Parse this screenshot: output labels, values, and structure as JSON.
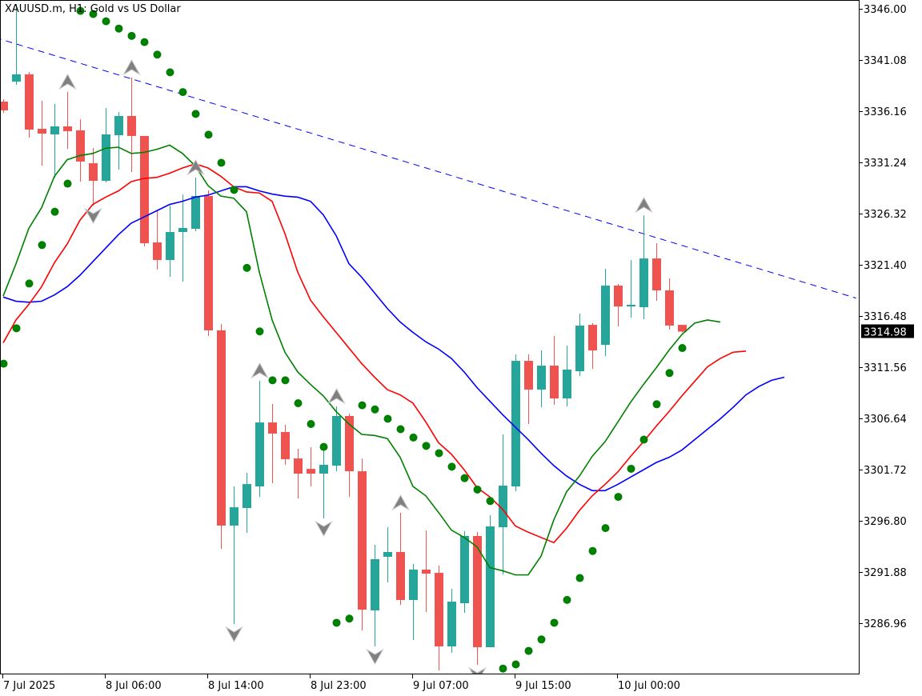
{
  "header": {
    "title": "XAUUSD.m, H1:  Gold vs US Dollar"
  },
  "colors": {
    "bull": "#26a69a",
    "bear": "#ef5350",
    "lips": "#008000",
    "teeth": "#ff0000",
    "jaw": "#0000ff",
    "sar": "#008000",
    "fractal": "#808080",
    "trendline": "#0000ff",
    "price_label_bg": "#000000"
  },
  "chart_data": {
    "type": "candlestick",
    "title": "XAUUSD.m, H1:  Gold vs US Dollar",
    "ylim": [
      3282.2,
      3346.8
    ],
    "y_ticks": [
      "3346.00",
      "3341.08",
      "3336.16",
      "3331.24",
      "3326.32",
      "3321.40",
      "3316.48",
      "3311.56",
      "3306.64",
      "3301.72",
      "3296.80",
      "3291.88",
      "3286.96"
    ],
    "x_ticks": [
      {
        "bar": 0,
        "label": "7 Jul 2025"
      },
      {
        "bar": 8,
        "label": "8 Jul 06:00"
      },
      {
        "bar": 16,
        "label": "8 Jul 14:00"
      },
      {
        "bar": 24,
        "label": "8 Jul 23:00"
      },
      {
        "bar": 32,
        "label": "9 Jul 07:00"
      },
      {
        "bar": 40,
        "label": "9 Jul 15:00"
      },
      {
        "bar": 48,
        "label": "10 Jul 00:00"
      }
    ],
    "current_price": "3314.98",
    "candles_ohlc": [
      [
        3337.08,
        3337.3,
        3336.0,
        3336.24
      ],
      [
        3339.0,
        3346.46,
        3338.7,
        3339.7
      ],
      [
        3339.7,
        3339.93,
        3333.62,
        3334.39
      ],
      [
        3334.47,
        3337.16,
        3330.93,
        3334.01
      ],
      [
        3333.93,
        3336.85,
        3329.78,
        3334.7
      ],
      [
        3334.7,
        3338.01,
        3332.55,
        3334.24
      ],
      [
        3334.32,
        3335.39,
        3329.39,
        3331.32
      ],
      [
        3331.16,
        3332.62,
        3327.09,
        3329.47
      ],
      [
        3329.47,
        3336.47,
        3329.32,
        3333.93
      ],
      [
        3333.85,
        3336.08,
        3330.55,
        3335.7
      ],
      [
        3335.7,
        3339.39,
        3330.32,
        3333.78
      ],
      [
        3333.78,
        3333.78,
        3323.17,
        3323.47
      ],
      [
        3323.55,
        3326.7,
        3320.94,
        3321.86
      ],
      [
        3321.86,
        3327.09,
        3320.25,
        3324.55
      ],
      [
        3324.55,
        3328.16,
        3319.78,
        3324.94
      ],
      [
        3324.86,
        3329.78,
        3324.63,
        3328.01
      ],
      [
        3328.01,
        3328.55,
        3314.56,
        3315.1
      ],
      [
        3315.1,
        3315.71,
        3294.11,
        3296.34
      ],
      [
        3296.34,
        3300.1,
        3286.88,
        3298.1
      ],
      [
        3298.03,
        3301.41,
        3295.64,
        3300.33
      ],
      [
        3300.1,
        3310.25,
        3299.1,
        3306.25
      ],
      [
        3306.25,
        3308.02,
        3300.41,
        3305.18
      ],
      [
        3305.33,
        3306.02,
        3302.18,
        3302.72
      ],
      [
        3302.79,
        3303.72,
        3298.95,
        3301.33
      ],
      [
        3301.79,
        3303.87,
        3300.1,
        3301.33
      ],
      [
        3301.33,
        3303.79,
        3297.03,
        3302.18
      ],
      [
        3302.1,
        3307.79,
        3301.56,
        3306.87
      ],
      [
        3306.87,
        3307.1,
        3299.1,
        3301.56
      ],
      [
        3301.56,
        3302.79,
        3286.27,
        3288.26
      ],
      [
        3288.19,
        3294.49,
        3284.73,
        3293.11
      ],
      [
        3293.34,
        3296.18,
        3290.88,
        3293.8
      ],
      [
        3293.8,
        3297.57,
        3288.73,
        3289.19
      ],
      [
        3289.19,
        3292.65,
        3285.34,
        3292.11
      ],
      [
        3292.11,
        3295.88,
        3288.03,
        3291.72
      ],
      [
        3291.8,
        3292.49,
        3282.42,
        3284.73
      ],
      [
        3284.73,
        3290.26,
        3284.11,
        3289.03
      ],
      [
        3288.88,
        3295.8,
        3287.96,
        3295.34
      ],
      [
        3295.34,
        3295.72,
        3282.96,
        3284.65
      ],
      [
        3284.65,
        3297.34,
        3284.65,
        3296.26
      ],
      [
        3296.18,
        3305.1,
        3291.65,
        3300.18
      ],
      [
        3300.1,
        3312.79,
        3299.64,
        3312.17
      ],
      [
        3312.17,
        3312.79,
        3306.1,
        3309.41
      ],
      [
        3309.41,
        3313.17,
        3307.71,
        3311.71
      ],
      [
        3311.71,
        3314.56,
        3307.95,
        3308.56
      ],
      [
        3308.56,
        3313.63,
        3307.79,
        3311.33
      ],
      [
        3311.17,
        3316.71,
        3310.71,
        3315.56
      ],
      [
        3315.63,
        3315.79,
        3311.4,
        3313.17
      ],
      [
        3313.71,
        3321.01,
        3312.63,
        3319.4
      ],
      [
        3319.4,
        3319.55,
        3315.48,
        3317.4
      ],
      [
        3317.4,
        3321.86,
        3316.33,
        3317.56
      ],
      [
        3317.32,
        3326.17,
        3316.17,
        3322.01
      ],
      [
        3322.01,
        3323.47,
        3317.94,
        3318.94
      ],
      [
        3318.94,
        3320.09,
        3315.17,
        3315.56
      ],
      [
        3315.63,
        3315.63,
        3314.9,
        3314.98
      ]
    ],
    "alligator": {
      "lips": [
        3318.4,
        3321.5,
        3324.9,
        3326.9,
        3329.9,
        3331.5,
        3331.9,
        3332.1,
        3332.6,
        3332.7,
        3332.1,
        3332.2,
        3332.5,
        3332.9,
        3332.1,
        3330.9,
        3329.0,
        3328.0,
        3327.8,
        3326.5,
        3320.7,
        3316.1,
        3313.0,
        3311.1,
        3309.9,
        3308.8,
        3307.3,
        3306.1,
        3305.1,
        3305.0,
        3304.7,
        3302.9,
        3300.1,
        3299.2,
        3297.6,
        3295.9,
        3295.2,
        3294.3,
        3292.3,
        3292.0,
        3291.6,
        3291.6,
        3293.4,
        3296.9,
        3299.6,
        3301.1,
        3303.0,
        3304.4,
        3306.3,
        3308.2,
        3309.9,
        3311.5,
        3313.2,
        3314.7,
        3315.8,
        3316.1,
        3315.9
      ],
      "teeth": [
        3313.9,
        3316.1,
        3317.6,
        3319.3,
        3321.6,
        3323.4,
        3325.7,
        3327.2,
        3327.9,
        3328.5,
        3329.4,
        3329.7,
        3329.8,
        3330.2,
        3330.7,
        3331.1,
        3330.7,
        3329.9,
        3328.9,
        3328.4,
        3328.3,
        3327.5,
        3324.4,
        3320.7,
        3318.0,
        3316.4,
        3314.9,
        3313.4,
        3311.9,
        3310.6,
        3309.4,
        3308.9,
        3308.1,
        3306.3,
        3304.3,
        3303.2,
        3301.7,
        3300.0,
        3299.1,
        3297.9,
        3296.3,
        3295.7,
        3295.2,
        3294.7,
        3296.1,
        3297.8,
        3299.2,
        3300.3,
        3301.5,
        3303.0,
        3304.4,
        3305.9,
        3307.3,
        3308.8,
        3310.2,
        3311.6,
        3312.4,
        3313.0,
        3313.1
      ],
      "jaw": [
        3318.3,
        3317.9,
        3317.8,
        3317.9,
        3318.5,
        3319.3,
        3320.4,
        3321.7,
        3323.0,
        3324.3,
        3325.4,
        3326.0,
        3326.6,
        3327.2,
        3327.5,
        3327.9,
        3328.1,
        3328.5,
        3328.9,
        3328.9,
        3328.5,
        3328.2,
        3328.0,
        3327.9,
        3327.5,
        3326.2,
        3324.2,
        3321.5,
        3320.2,
        3318.7,
        3317.2,
        3315.9,
        3314.9,
        3314.0,
        3313.3,
        3312.4,
        3311.1,
        3309.6,
        3308.3,
        3307.0,
        3305.8,
        3304.6,
        3303.3,
        3302.1,
        3301.1,
        3300.3,
        3299.7,
        3299.7,
        3300.3,
        3301.0,
        3301.7,
        3302.4,
        3302.9,
        3303.6,
        3304.6,
        3305.6,
        3306.6,
        3307.7,
        3308.9,
        3309.7,
        3310.3,
        3310.6
      ]
    },
    "parabolic_sar": [
      3311.9,
      3315.3,
      3319.6,
      3323.3,
      3326.5,
      3329.2,
      3345.8,
      3345.5,
      3344.8,
      3344.1,
      3343.4,
      3342.8,
      3341.6,
      3339.9,
      3338.0,
      3335.9,
      3333.9,
      3331.2,
      3328.6,
      3321.1,
      3315.0,
      3310.3,
      3310.3,
      3308.1,
      3306.1,
      3303.9,
      3287.0,
      3287.4,
      3307.9,
      3307.5,
      3306.6,
      3305.6,
      3304.8,
      3304.0,
      3303.3,
      3302.0,
      3300.9,
      3299.8,
      3298.7,
      3282.6,
      3283.0,
      3284.3,
      3285.4,
      3287.0,
      3289.2,
      3291.3,
      3293.9,
      3296.1,
      3299.1,
      3301.8,
      3304.6,
      3308.0,
      3311.0,
      3313.4
    ],
    "fractals_up_bars": [
      1,
      5,
      10,
      15,
      20,
      26,
      31,
      50
    ],
    "fractals_down_bars": [
      7,
      18,
      25,
      29,
      34,
      37
    ],
    "trendline": {
      "style": "dashed",
      "points": [
        {
          "bar": 0,
          "price": 3343.0
        },
        {
          "bar": 66.6,
          "price": 3318.2
        }
      ]
    }
  }
}
